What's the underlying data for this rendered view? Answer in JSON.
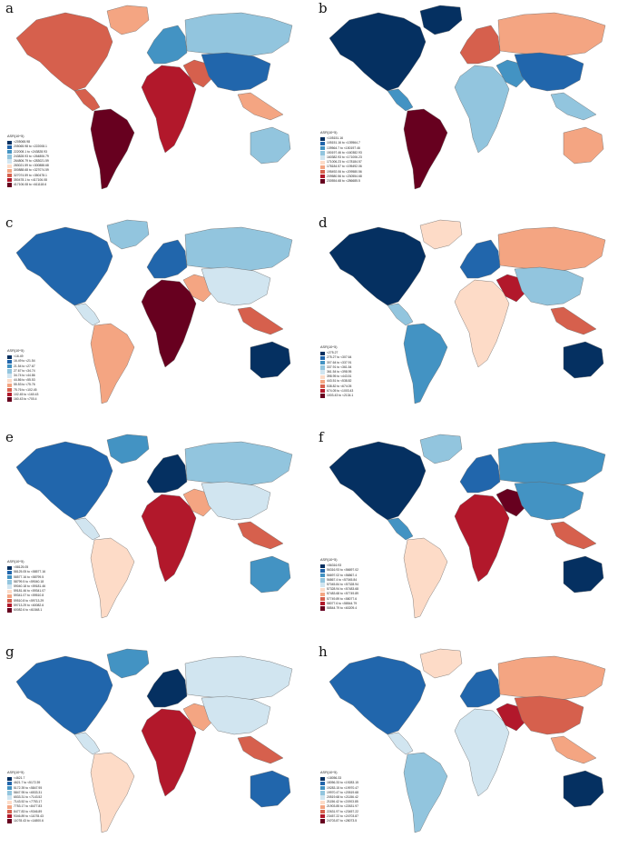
{
  "palette": [
    "#053061",
    "#2166ac",
    "#4393c3",
    "#92c5de",
    "#d1e5f0",
    "#fddbc7",
    "#f4a582",
    "#d6604d",
    "#b2182b",
    "#67001f"
  ],
  "legend_title": "ASR(10^5)",
  "panels": [
    {
      "label": "a",
      "legend": [
        "<205065.98",
        "205065.98 to <222008.1",
        "222008.1 to <243828.93",
        "243828.93 to <264806.79",
        "264806.79 to <283021.59",
        "283021.59 to <300888.68",
        "300888.68 to <327074.59",
        "327074.59 to <350478.1",
        "350478.1 to <417106.08",
        "417106.08 to <611118.6"
      ],
      "regions": {
        "NA": 7,
        "GL": 6,
        "CA": 7,
        "SA": 9,
        "EU": 2,
        "RU": 3,
        "AF": 8,
        "ME": 7,
        "AS": 1,
        "SEA": 6,
        "AU": 3
      }
    },
    {
      "label": "b",
      "legend": [
        "<105151.16",
        "105151.16 to <139564.7",
        "139564.7 to <150197.46",
        "150197.46 to <160382.93",
        "160382.93 to <171006.23",
        "171006.23 to <178184.57",
        "178184.57 to <195492.06",
        "195492.06 to <209580.56",
        "209580.56 to <230554.68",
        "230554.68 to <286685.5"
      ],
      "regions": {
        "NA": 0,
        "GL": 0,
        "CA": 2,
        "SA": 9,
        "EU": 7,
        "RU": 6,
        "AF": 3,
        "ME": 2,
        "AS": 1,
        "SEA": 3,
        "AU": 6
      }
    },
    {
      "label": "c",
      "legend": [
        "<16.49",
        "16.49 to <21.54",
        "21.54 to <27.67",
        "27.67 to <34.74",
        "34.74 to <44.86",
        "44.86 to <55.53",
        "55.53 to <75.76",
        "75.76 to <102.45",
        "102.45 to <160.43",
        "160.43 to <700.4"
      ],
      "regions": {
        "NA": 1,
        "GL": 3,
        "CA": 4,
        "SA": 6,
        "EU": 1,
        "RU": 3,
        "AF": 9,
        "ME": 6,
        "AS": 4,
        "SEA": 7,
        "AU": 0
      }
    },
    {
      "label": "d",
      "legend": [
        "<275.27",
        "275.27 to <307.64",
        "307.64 to <337.91",
        "337.91 to <361.54",
        "361.54 to <398.95",
        "398.95 to <443.51",
        "443.51 to <538.82",
        "538.82 to <674.05",
        "674.05 to <1003.43",
        "1003.43 to <2134.1"
      ],
      "regions": {
        "NA": 0,
        "GL": 5,
        "CA": 3,
        "SA": 2,
        "EU": 1,
        "RU": 6,
        "AF": 5,
        "ME": 8,
        "AS": 3,
        "SEA": 7,
        "AU": 0
      }
    },
    {
      "label": "e",
      "legend": [
        "<58125.05",
        "58125.05 to <58577.16",
        "58577.16 to <58799.5",
        "58799.5 to <59040.18",
        "59040.18 to <59181.46",
        "59181.46 to <59341.07",
        "59341.07 to <59510.8",
        "59510.8 to <59713.29",
        "59713.29 to <60082.6",
        "60082.6 to <61548.1"
      ],
      "regions": {
        "NA": 1,
        "GL": 2,
        "CA": 4,
        "SA": 5,
        "EU": 0,
        "RU": 3,
        "AF": 8,
        "ME": 6,
        "AS": 4,
        "SEA": 7,
        "AU": 2
      }
    },
    {
      "label": "f",
      "legend": [
        "<56316.93",
        "56316.93 to <56697.02",
        "56697.02 to <56867.4",
        "56867.4 to <57045.84",
        "57045.84 to <57328.94",
        "57328.94 to <57483.68",
        "57483.68 to <57749.89",
        "57749.89 to <58077.6",
        "58077.6 to <58544.79",
        "58544.79 to <60209.4"
      ],
      "regions": {
        "NA": 0,
        "GL": 3,
        "CA": 2,
        "SA": 5,
        "EU": 1,
        "RU": 2,
        "AF": 8,
        "ME": 9,
        "AS": 2,
        "SEA": 7,
        "AU": 0
      }
    },
    {
      "label": "g",
      "legend": [
        "<4621.7",
        "4621.7 to <5172.39",
        "5172.39 to <5847.95",
        "5847.95 to <6533.31",
        "6533.31 to <7143.52",
        "7143.52 to <7753.17",
        "7753.17 to <8477.83",
        "8477.83 to <9346.89",
        "9346.89 to <11078.43",
        "11078.43 to <14800.6"
      ],
      "regions": {
        "NA": 1,
        "GL": 2,
        "CA": 4,
        "SA": 5,
        "EU": 0,
        "RU": 4,
        "AF": 8,
        "ME": 6,
        "AS": 4,
        "SEA": 7,
        "AU": 1
      }
    },
    {
      "label": "h",
      "legend": [
        "<18056.33",
        "18056.33 to <19283.15",
        "19283.15 to <19970.47",
        "19970.47 to <20519.68",
        "20519.68 to <21156.42",
        "21156.42 to <21903.85",
        "21903.85 to <22631.97",
        "22631.97 to <23457.22",
        "23457.22 to <24703.87",
        "24703.87 to <28073.5"
      ],
      "regions": {
        "NA": 1,
        "GL": 5,
        "CA": 4,
        "SA": 3,
        "EU": 1,
        "RU": 6,
        "AF": 4,
        "ME": 8,
        "AS": 7,
        "SEA": 6,
        "AU": 0
      }
    }
  ]
}
